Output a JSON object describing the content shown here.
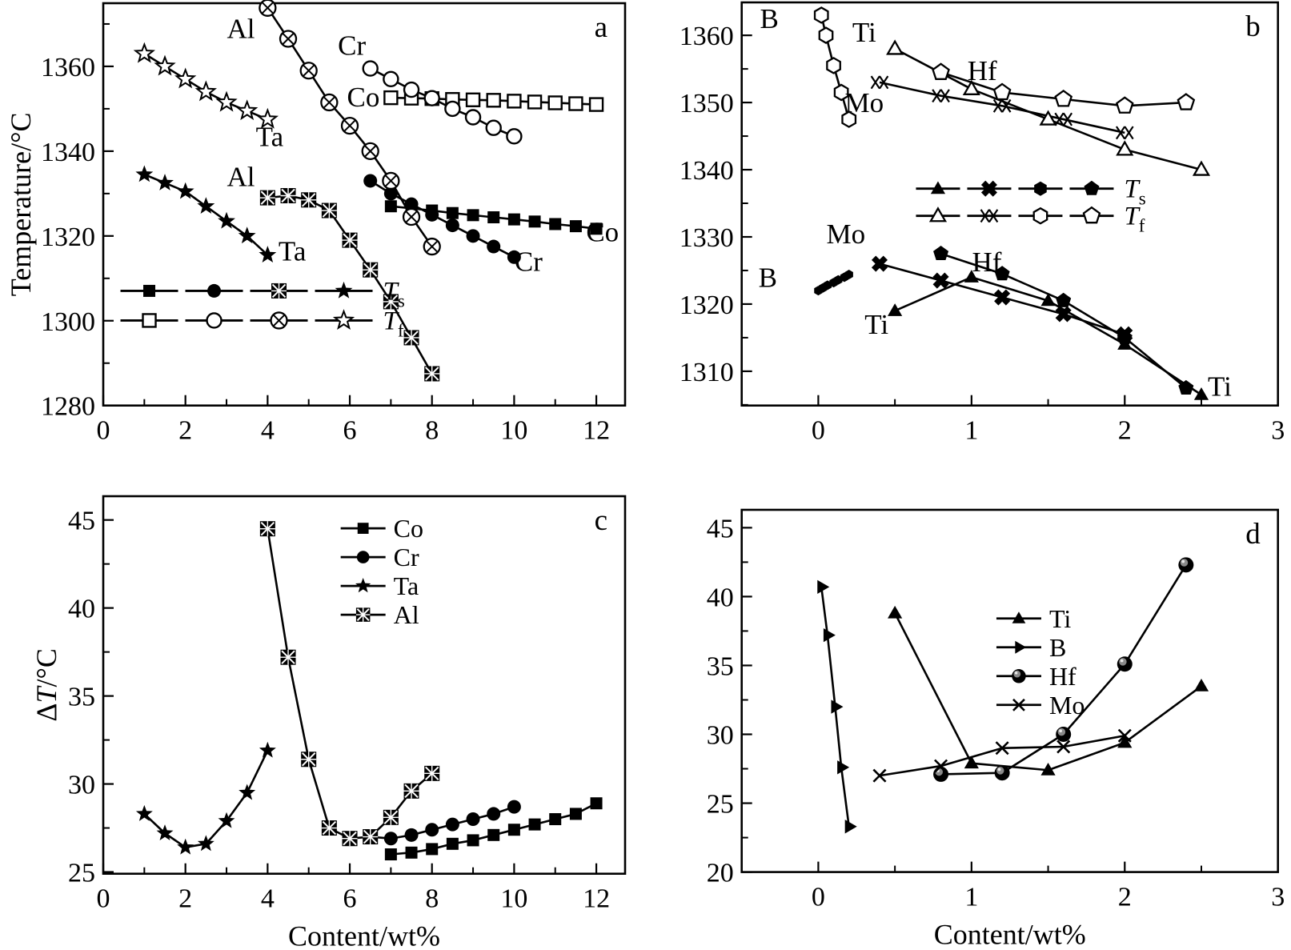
{
  "figure": {
    "background": "#ffffff",
    "ink_color": "#000000",
    "x_axis_title": "Content/wt%",
    "temp_axis_title": "Temperature/°C",
    "dt_axis_title": "ΔT/°C"
  },
  "chart_data": [
    {
      "id": "a",
      "type": "line",
      "panel_label": "a",
      "xlabel": "",
      "ylabel": "Temperature/°C",
      "xlim": [
        0,
        12.7
      ],
      "ylim": [
        1280,
        1374.9
      ],
      "x_major_ticks": [
        0,
        2,
        4,
        6,
        8,
        10,
        12
      ],
      "x_minor_ticks": [
        1,
        3,
        5,
        7,
        9,
        11
      ],
      "y_major_ticks": [
        1280,
        1300,
        1320,
        1340,
        1360
      ],
      "y_minor_ticks": [
        1290,
        1310,
        1330,
        1350,
        1370
      ],
      "legend": {
        "type": "rows",
        "x": 0.033,
        "y": 0.715,
        "row_gap": 37,
        "seg_len": 72,
        "rows": [
          {
            "label": "T",
            "sub": "s",
            "markers": [
              "square",
              "circle",
              "xsquare",
              "star"
            ]
          },
          {
            "label": "T",
            "sub": "f",
            "markers": [
              "square-open",
              "circle-open",
              "otimes",
              "star-open"
            ]
          }
        ]
      },
      "series": [
        {
          "name": "Co Ts",
          "group": "Ts",
          "marker": "square",
          "r": 7.5,
          "x": [
            7,
            7.5,
            8,
            8.5,
            9,
            9.5,
            10,
            10.5,
            11,
            11.5,
            12
          ],
          "y": [
            1327,
            1326.5,
            1326,
            1325.4,
            1324.9,
            1324.4,
            1323.9,
            1323.4,
            1322.8,
            1322.3,
            1321.7
          ]
        },
        {
          "name": "Cr Ts",
          "group": "Ts",
          "marker": "circle",
          "r": 8.5,
          "x": [
            6.5,
            7,
            7.5,
            8,
            8.5,
            9,
            9.5,
            10
          ],
          "y": [
            1333,
            1330,
            1327.5,
            1325,
            1322.5,
            1320,
            1317.5,
            1315
          ]
        },
        {
          "name": "Al Ts",
          "group": "Ts",
          "marker": "xsquare",
          "r": 9.5,
          "x": [
            4,
            4.5,
            5,
            5.5,
            6,
            6.5,
            7,
            7.5,
            8
          ],
          "y": [
            1329,
            1329.5,
            1328.5,
            1326,
            1319,
            1312,
            1304.5,
            1296,
            1287.5
          ]
        },
        {
          "name": "Ta Ts",
          "group": "Ts",
          "marker": "star",
          "r": 11.5,
          "x": [
            1,
            1.5,
            2,
            2.5,
            3,
            3.5,
            4
          ],
          "y": [
            1334.5,
            1332.5,
            1330.5,
            1327,
            1323.5,
            1320,
            1315.5
          ]
        },
        {
          "name": "Co Tf",
          "group": "Tf",
          "marker": "square-open",
          "r": 8,
          "x": [
            7,
            7.5,
            8,
            8.5,
            9,
            9.5,
            10,
            10.5,
            11,
            11.5,
            12
          ],
          "y": [
            1352.6,
            1352.5,
            1352.4,
            1352.2,
            1352.1,
            1352,
            1351.8,
            1351.6,
            1351.4,
            1351.2,
            1351
          ]
        },
        {
          "name": "Cr Tf",
          "group": "Tf",
          "marker": "circle-open",
          "r": 9,
          "x": [
            6.5,
            7,
            7.5,
            8,
            8.5,
            9,
            9.5,
            10
          ],
          "y": [
            1359.5,
            1357,
            1354.5,
            1352.5,
            1350,
            1348,
            1345.5,
            1343.5
          ]
        },
        {
          "name": "Al Tf",
          "group": "Tf",
          "marker": "otimes",
          "r": 10,
          "x": [
            4,
            4.5,
            5,
            5.5,
            6,
            6.5,
            7,
            7.5,
            8
          ],
          "y": [
            1373.8,
            1366.5,
            1359,
            1351.5,
            1346,
            1340,
            1333,
            1324.5,
            1317.5
          ]
        },
        {
          "name": "Ta Tf",
          "group": "Tf",
          "marker": "star-open",
          "r": 11.5,
          "x": [
            1,
            1.5,
            2,
            2.5,
            3,
            3.5,
            4
          ],
          "y": [
            1363,
            1360,
            1357,
            1354,
            1351.5,
            1349.5,
            1347.5
          ]
        }
      ],
      "annotations": [
        {
          "text": "Al",
          "x": 3.35,
          "y": 1369
        },
        {
          "text": "Cr",
          "x": 6.05,
          "y": 1365
        },
        {
          "text": "Co",
          "x": 6.33,
          "y": 1352.8
        },
        {
          "text": "Ta",
          "x": 4.05,
          "y": 1343.5
        },
        {
          "text": "Al",
          "x": 3.35,
          "y": 1334
        },
        {
          "text": "Ta",
          "x": 4.6,
          "y": 1316.5
        },
        {
          "text": "Co",
          "x": 12.15,
          "y": 1321
        },
        {
          "text": "Cr",
          "x": 10.35,
          "y": 1314
        }
      ]
    },
    {
      "id": "b",
      "type": "line",
      "panel_label": "b",
      "xlabel": "",
      "ylabel": "",
      "xlim": [
        -0.5,
        3
      ],
      "ylim": [
        1304.9,
        1364.9
      ],
      "x_major_ticks": [
        0,
        1,
        2,
        3
      ],
      "x_minor_ticks": [
        0.5,
        1.5,
        2.5
      ],
      "y_major_ticks": [
        1310,
        1320,
        1330,
        1340,
        1350,
        1360
      ],
      "y_minor_ticks": [
        1305,
        1315,
        1325,
        1335,
        1345,
        1355
      ],
      "legend": {
        "type": "rows",
        "x": 0.325,
        "y": 0.462,
        "row_gap": 34,
        "seg_len": 55,
        "rows": [
          {
            "label": "T",
            "sub": "s",
            "markers": [
              "tri",
              "xblob",
              "hex",
              "pent"
            ]
          },
          {
            "label": "T",
            "sub": "f",
            "markers": [
              "tri-open",
              "xx",
              "hex-open",
              "pent-open"
            ]
          }
        ]
      },
      "series": [
        {
          "name": "B Ts",
          "group": "Ts",
          "marker": "hex",
          "r": 6,
          "x": [
            0,
            0.03,
            0.06,
            0.1,
            0.13,
            0.17,
            0.2
          ],
          "y": [
            1322,
            1322.4,
            1322.8,
            1323.2,
            1323.6,
            1324,
            1324.4
          ]
        },
        {
          "name": "Mo Ts",
          "group": "Ts",
          "marker": "xblob",
          "r": 9,
          "x": [
            0.4,
            0.8,
            1.2,
            1.6,
            2
          ],
          "y": [
            1326,
            1323.5,
            1321,
            1318.5,
            1315.5
          ]
        },
        {
          "name": "Ti Ts",
          "group": "Ts",
          "marker": "tri",
          "r": 10.5,
          "x": [
            0.5,
            1,
            1.5,
            2,
            2.5
          ],
          "y": [
            1319,
            1324,
            1320.5,
            1314,
            1306.5
          ]
        },
        {
          "name": "Hf Ts",
          "group": "Ts",
          "marker": "pent",
          "r": 10,
          "x": [
            0.8,
            1.2,
            1.6,
            2,
            2.4
          ],
          "y": [
            1327.5,
            1324.5,
            1320.5,
            1315,
            1307.5
          ]
        },
        {
          "name": "B Tf",
          "group": "Tf",
          "marker": "hex-open",
          "r": 9.5,
          "x": [
            0.02,
            0.05,
            0.1,
            0.15,
            0.2
          ],
          "y": [
            1363,
            1360,
            1355.5,
            1351.5,
            1347.5
          ]
        },
        {
          "name": "Mo Tf",
          "group": "Tf",
          "marker": "xx",
          "r": 10,
          "x": [
            0.4,
            0.8,
            1.2,
            1.6,
            2
          ],
          "y": [
            1353,
            1351,
            1349.5,
            1347.5,
            1345.5
          ]
        },
        {
          "name": "Ti Tf",
          "group": "Tf",
          "marker": "tri-open",
          "r": 10.5,
          "x": [
            0.5,
            1,
            1.5,
            2,
            2.5
          ],
          "y": [
            1358,
            1352,
            1347.5,
            1343,
            1340
          ]
        },
        {
          "name": "Hf Tf",
          "group": "Tf",
          "marker": "pent-open",
          "r": 10.5,
          "x": [
            0.8,
            1.2,
            1.6,
            2,
            2.4
          ],
          "y": [
            1354.5,
            1351.5,
            1350.5,
            1349.5,
            1350
          ]
        }
      ],
      "annotations": [
        {
          "text": "B",
          "x": -0.32,
          "y": 1362.5
        },
        {
          "text": "Ti",
          "x": 0.3,
          "y": 1360.5
        },
        {
          "text": "Hf",
          "x": 1.07,
          "y": 1354.8
        },
        {
          "text": "Mo",
          "x": 0.3,
          "y": 1350
        },
        {
          "text": "Mo",
          "x": 0.18,
          "y": 1330.5
        },
        {
          "text": "Hf",
          "x": 1.1,
          "y": 1326.3
        },
        {
          "text": "B",
          "x": -0.33,
          "y": 1324
        },
        {
          "text": "Ti",
          "x": 0.38,
          "y": 1317
        },
        {
          "text": "Ti",
          "x": 2.62,
          "y": 1307.8
        }
      ]
    },
    {
      "id": "c",
      "type": "line",
      "panel_label": "c",
      "xlabel": "Content/wt%",
      "ylabel": "ΔT/°C",
      "ylabel_parts": [
        [
          "Δ",
          false
        ],
        [
          "T",
          true
        ],
        [
          "/°C",
          false
        ]
      ],
      "xlim": [
        0,
        12.7
      ],
      "ylim": [
        24.9,
        46.35
      ],
      "x_major_ticks": [
        0,
        2,
        4,
        6,
        8,
        10,
        12
      ],
      "x_minor_ticks": [
        1,
        3,
        5,
        7,
        9,
        11
      ],
      "y_major_ticks": [
        25,
        30,
        35,
        40,
        45
      ],
      "y_minor_ticks": [
        27.5,
        32.5,
        37.5,
        42.5
      ],
      "legend": {
        "type": "list",
        "x": 0.455,
        "y": 0.085,
        "row_gap": 36,
        "seg_len": 56,
        "items": [
          {
            "label": "Co",
            "marker": "square"
          },
          {
            "label": "Cr",
            "marker": "circle"
          },
          {
            "label": "Ta",
            "marker": "star"
          },
          {
            "label": "Al",
            "marker": "xsquare"
          }
        ]
      },
      "series": [
        {
          "name": "Co",
          "group": "dT",
          "marker": "square",
          "r": 7.5,
          "x": [
            7,
            7.5,
            8,
            8.5,
            9,
            9.5,
            10,
            10.5,
            11,
            11.5,
            12
          ],
          "y": [
            26,
            26.1,
            26.3,
            26.6,
            26.8,
            27.1,
            27.4,
            27.7,
            28,
            28.3,
            28.9
          ]
        },
        {
          "name": "Cr",
          "group": "dT",
          "marker": "circle",
          "r": 8.5,
          "x": [
            6.5,
            7,
            7.5,
            8,
            8.5,
            9,
            9.5,
            10
          ],
          "y": [
            27,
            26.9,
            27.1,
            27.4,
            27.7,
            28,
            28.3,
            28.7
          ]
        },
        {
          "name": "Ta",
          "group": "dT",
          "marker": "star",
          "r": 11,
          "x": [
            1,
            1.5,
            2,
            2.5,
            3,
            3.5,
            4
          ],
          "y": [
            28.3,
            27.2,
            26.4,
            26.6,
            27.9,
            29.5,
            31.9
          ]
        },
        {
          "name": "Al",
          "group": "dT",
          "marker": "xsquare",
          "r": 9.5,
          "x": [
            4,
            4.5,
            5,
            5.5,
            6,
            6.5,
            7,
            7.5,
            8
          ],
          "y": [
            44.5,
            37.2,
            31.4,
            27.5,
            26.9,
            27,
            28.1,
            29.6,
            30.6
          ]
        }
      ],
      "annotations": []
    },
    {
      "id": "d",
      "type": "line",
      "panel_label": "d",
      "xlabel": "Content/wt%",
      "ylabel": "",
      "xlim": [
        -0.5,
        3
      ],
      "ylim": [
        20,
        46.3
      ],
      "x_major_ticks": [
        0,
        1,
        2,
        3
      ],
      "x_minor_ticks": [
        0.5,
        1.5,
        2.5
      ],
      "y_major_ticks": [
        20,
        25,
        30,
        35,
        40,
        45
      ],
      "y_minor_ticks": [
        22.5,
        27.5,
        32.5,
        37.5,
        42.5
      ],
      "legend": {
        "type": "list",
        "x": 0.475,
        "y": 0.3,
        "row_gap": 36,
        "seg_len": 56,
        "items": [
          {
            "label": "Ti",
            "marker": "tri"
          },
          {
            "label": "B",
            "marker": "tri-right"
          },
          {
            "label": "Hf",
            "marker": "sphere"
          },
          {
            "label": "Mo",
            "marker": "cross"
          }
        ]
      },
      "series": [
        {
          "name": "Ti",
          "group": "dT",
          "marker": "tri",
          "r": 10.5,
          "x": [
            0.5,
            1,
            1.5,
            2,
            2.5
          ],
          "y": [
            38.8,
            27.9,
            27.4,
            29.4,
            33.5
          ]
        },
        {
          "name": "B",
          "group": "dT",
          "marker": "tri-right",
          "r": 10,
          "x": [
            0.02,
            0.06,
            0.11,
            0.15,
            0.2
          ],
          "y": [
            40.7,
            37.2,
            32,
            27.6,
            23.3
          ]
        },
        {
          "name": "Hf",
          "group": "dT",
          "marker": "sphere",
          "r": 9.5,
          "x": [
            0.8,
            1.2,
            1.6,
            2,
            2.4
          ],
          "y": [
            27.1,
            27.2,
            30,
            35.1,
            42.3
          ]
        },
        {
          "name": "Mo",
          "group": "dT",
          "marker": "cross",
          "r": 9.5,
          "x": [
            0.4,
            0.8,
            1.2,
            1.6,
            2
          ],
          "y": [
            27,
            27.7,
            29,
            29.1,
            29.9
          ]
        }
      ],
      "annotations": []
    }
  ]
}
